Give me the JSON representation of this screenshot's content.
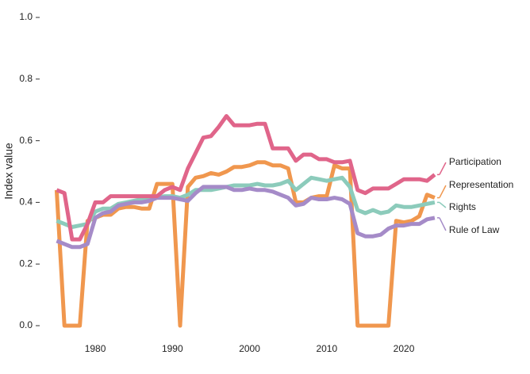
{
  "chart_data": {
    "type": "line",
    "y_label": "Index value",
    "x": [
      1975,
      1976,
      1977,
      1978,
      1979,
      1980,
      1981,
      1982,
      1983,
      1984,
      1985,
      1986,
      1987,
      1988,
      1989,
      1990,
      1991,
      1992,
      1993,
      1994,
      1995,
      1996,
      1997,
      1998,
      1999,
      2000,
      2001,
      2002,
      2003,
      2004,
      2005,
      2006,
      2007,
      2008,
      2009,
      2010,
      2011,
      2012,
      2013,
      2014,
      2015,
      2016,
      2017,
      2018,
      2019,
      2020,
      2021,
      2022,
      2023,
      2024
    ],
    "series": [
      {
        "name": "Representation",
        "color": "#f0974e",
        "values": [
          0.44,
          0,
          0,
          0,
          0.34,
          0.35,
          0.36,
          0.36,
          0.38,
          0.385,
          0.385,
          0.38,
          0.38,
          0.46,
          0.46,
          0.46,
          0,
          0.45,
          0.48,
          0.485,
          0.495,
          0.49,
          0.5,
          0.515,
          0.515,
          0.52,
          0.53,
          0.53,
          0.52,
          0.52,
          0.51,
          0.4,
          0.4,
          0.415,
          0.42,
          0.42,
          0.52,
          0.51,
          0.51,
          0,
          0,
          0,
          0,
          0,
          0.34,
          0.335,
          0.34,
          0.355,
          0.425,
          0.415
        ]
      },
      {
        "name": "Rights",
        "color": "#8ccbbb",
        "values": [
          0.34,
          0.33,
          0.32,
          0.325,
          0.33,
          0.37,
          0.38,
          0.38,
          0.395,
          0.4,
          0.405,
          0.41,
          0.415,
          0.415,
          0.42,
          0.42,
          0.415,
          0.425,
          0.44,
          0.44,
          0.44,
          0.445,
          0.45,
          0.455,
          0.455,
          0.455,
          0.46,
          0.455,
          0.455,
          0.46,
          0.47,
          0.44,
          0.46,
          0.48,
          0.475,
          0.47,
          0.475,
          0.48,
          0.45,
          0.375,
          0.365,
          0.375,
          0.365,
          0.37,
          0.39,
          0.385,
          0.385,
          0.39,
          0.395,
          0.4
        ]
      },
      {
        "name": "Rule of Law",
        "color": "#a58bc8",
        "values": [
          0.275,
          0.265,
          0.255,
          0.255,
          0.265,
          0.35,
          0.365,
          0.37,
          0.39,
          0.395,
          0.4,
          0.4,
          0.405,
          0.415,
          0.415,
          0.415,
          0.41,
          0.405,
          0.43,
          0.45,
          0.45,
          0.45,
          0.45,
          0.44,
          0.44,
          0.445,
          0.44,
          0.44,
          0.435,
          0.425,
          0.415,
          0.39,
          0.395,
          0.415,
          0.41,
          0.41,
          0.415,
          0.41,
          0.395,
          0.3,
          0.29,
          0.29,
          0.295,
          0.315,
          0.325,
          0.325,
          0.33,
          0.33,
          0.345,
          0.35
        ]
      },
      {
        "name": "Participation",
        "color": "#e0658a",
        "values": [
          0.44,
          0.43,
          0.28,
          0.28,
          0.33,
          0.4,
          0.4,
          0.42,
          0.42,
          0.42,
          0.42,
          0.42,
          0.42,
          0.42,
          0.44,
          0.45,
          0.44,
          0.51,
          0.56,
          0.61,
          0.615,
          0.645,
          0.68,
          0.65,
          0.65,
          0.65,
          0.655,
          0.655,
          0.575,
          0.575,
          0.575,
          0.535,
          0.555,
          0.555,
          0.54,
          0.54,
          0.53,
          0.53,
          0.535,
          0.44,
          0.43,
          0.445,
          0.445,
          0.445,
          0.46,
          0.475,
          0.475,
          0.475,
          0.47,
          0.49
        ]
      }
    ],
    "xlim": [
      1973,
      2031
    ],
    "xticks": [
      1980,
      1990,
      2000,
      2010,
      2020
    ],
    "ylim": [
      0,
      1
    ],
    "yticks": [
      {
        "value": 0,
        "label": "0.0"
      },
      {
        "value": 0.2,
        "label": "0.2"
      },
      {
        "value": 0.4,
        "label": "0.4"
      },
      {
        "value": 0.6,
        "label": "0.6"
      },
      {
        "value": 0.8,
        "label": "0.8"
      },
      {
        "value": 1,
        "label": "1.0"
      }
    ]
  }
}
